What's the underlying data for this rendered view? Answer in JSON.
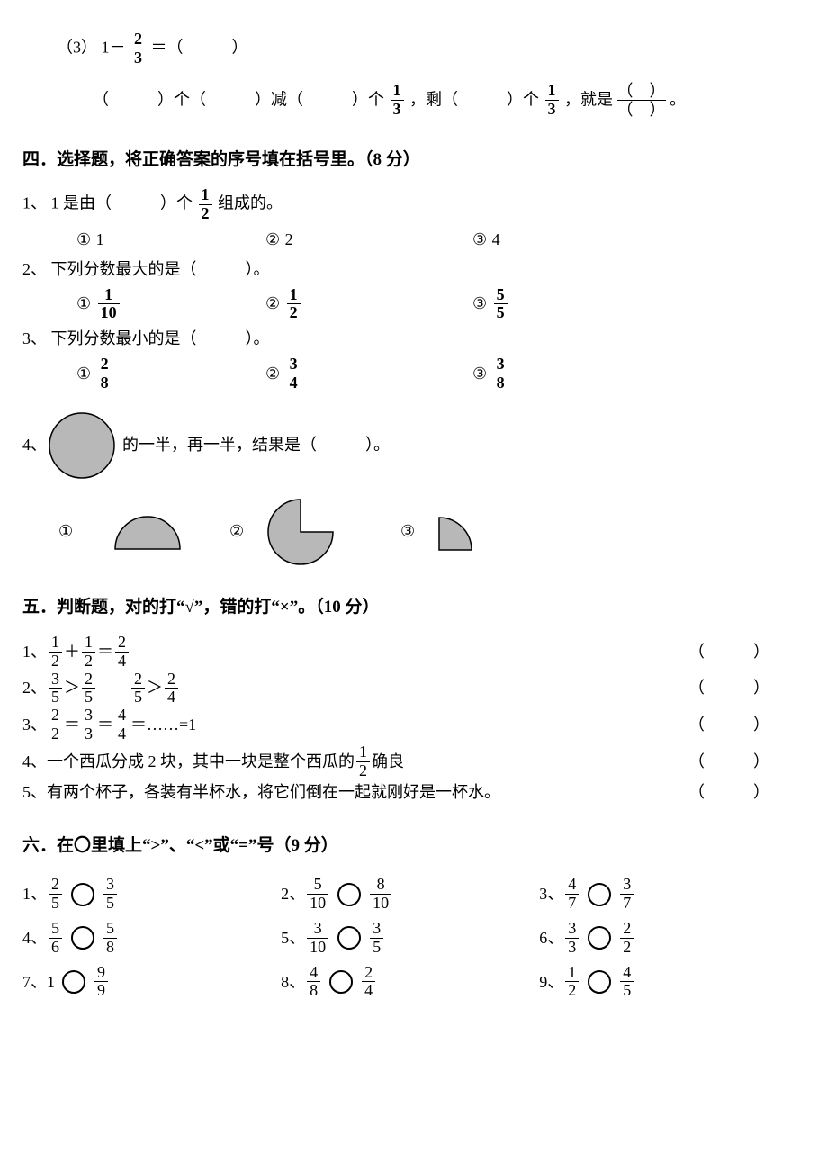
{
  "p3": {
    "label": "（3）",
    "eq_lhs_1": "1－",
    "eq_frac": {
      "n": "2",
      "d": "3"
    },
    "eq_rhs": "＝（　　　）",
    "line2_a": "（　　　）个（　　　）减（　　　）个",
    "line2_frac1": {
      "n": "1",
      "d": "3"
    },
    "line2_b": "，剩（　　　）个",
    "line2_frac2": {
      "n": "1",
      "d": "3"
    },
    "line2_c": "，就是",
    "stack_top": "（　）",
    "stack_bot": "（　）",
    "line2_end": "。"
  },
  "s4": {
    "title": "四．选择题，将正确答案的序号填在括号里。（8 分）",
    "q1": {
      "num": "1、",
      "text_a": "1 是由（　　　）个",
      "frac": {
        "n": "1",
        "d": "2"
      },
      "text_b": "组成的。",
      "o1": "①",
      "o1v": "1",
      "o2": "②",
      "o2v": "2",
      "o3": "③",
      "o3v": "4"
    },
    "q2": {
      "num": "2、",
      "text": "下列分数最大的是（　　　）。",
      "o1": "①",
      "f1": {
        "n": "1",
        "d": "10"
      },
      "o2": "②",
      "f2": {
        "n": "1",
        "d": "2"
      },
      "o3": "③",
      "f3": {
        "n": "5",
        "d": "5"
      }
    },
    "q3": {
      "num": "3、",
      "text": "下列分数最小的是（　　　）。",
      "o1": "①",
      "f1": {
        "n": "2",
        "d": "8"
      },
      "o2": "②",
      "f2": {
        "n": "3",
        "d": "4"
      },
      "o3": "③",
      "f3": {
        "n": "3",
        "d": "8"
      }
    },
    "q4": {
      "num": "4、",
      "text": "的一半，再一半，结果是（　　　）。",
      "o1": "①",
      "o2": "②",
      "o3": "③",
      "shape_fill": "#b8b8b8",
      "shape_stroke": "#000"
    }
  },
  "s5": {
    "title": "五．判断题，对的打“√”，错的打“×”。（10 分）",
    "paren": "（　　　）",
    "q1": {
      "num": "1、",
      "f1": {
        "n": "1",
        "d": "2"
      },
      "op1": "＋",
      "f2": {
        "n": "1",
        "d": "2"
      },
      "op2": "＝",
      "f3": {
        "n": "2",
        "d": "4"
      }
    },
    "q2": {
      "num": "2、",
      "f1": {
        "n": "3",
        "d": "5"
      },
      "op1": "＞",
      "f2": {
        "n": "2",
        "d": "5"
      },
      "gap": "　　",
      "f3": {
        "n": "2",
        "d": "5"
      },
      "op2": "＞",
      "f4": {
        "n": "2",
        "d": "4"
      }
    },
    "q3": {
      "num": "3、",
      "f1": {
        "n": "2",
        "d": "2"
      },
      "op1": "＝",
      "f2": {
        "n": "3",
        "d": "3"
      },
      "op2": "＝",
      "f3": {
        "n": "4",
        "d": "4"
      },
      "tail": "＝……=1"
    },
    "q4": {
      "num": "4、",
      "a": "一个西瓜分成 2 块，其中一块是整个西瓜的",
      "f": {
        "n": "1",
        "d": "2"
      },
      "b": "确良"
    },
    "q5": {
      "num": "5、",
      "text": "有两个杯子，各装有半杯水，将它们倒在一起就刚好是一杯水。"
    }
  },
  "s6": {
    "title": "六．在〇里填上“>”、“<”或“=”号（9 分）",
    "items": [
      {
        "num": "1、",
        "l": {
          "n": "2",
          "d": "5"
        },
        "r": {
          "n": "3",
          "d": "5"
        }
      },
      {
        "num": "2、",
        "l": {
          "n": "5",
          "d": "10"
        },
        "r": {
          "n": "8",
          "d": "10"
        }
      },
      {
        "num": "3、",
        "l": {
          "n": "4",
          "d": "7"
        },
        "r": {
          "n": "3",
          "d": "7"
        }
      },
      {
        "num": "4、",
        "l": {
          "n": "5",
          "d": "6"
        },
        "r": {
          "n": "5",
          "d": "8"
        }
      },
      {
        "num": "5、",
        "l": {
          "n": "3",
          "d": "10"
        },
        "r": {
          "n": "3",
          "d": "5"
        }
      },
      {
        "num": "6、",
        "l": {
          "n": "3",
          "d": "3"
        },
        "r": {
          "n": "2",
          "d": "2"
        }
      },
      {
        "num": "7、",
        "whole": "1",
        "r": {
          "n": "9",
          "d": "9"
        }
      },
      {
        "num": "8、",
        "l": {
          "n": "4",
          "d": "8"
        },
        "r": {
          "n": "2",
          "d": "4"
        }
      },
      {
        "num": "9、",
        "l": {
          "n": "1",
          "d": "2"
        },
        "r": {
          "n": "4",
          "d": "5"
        }
      }
    ]
  }
}
